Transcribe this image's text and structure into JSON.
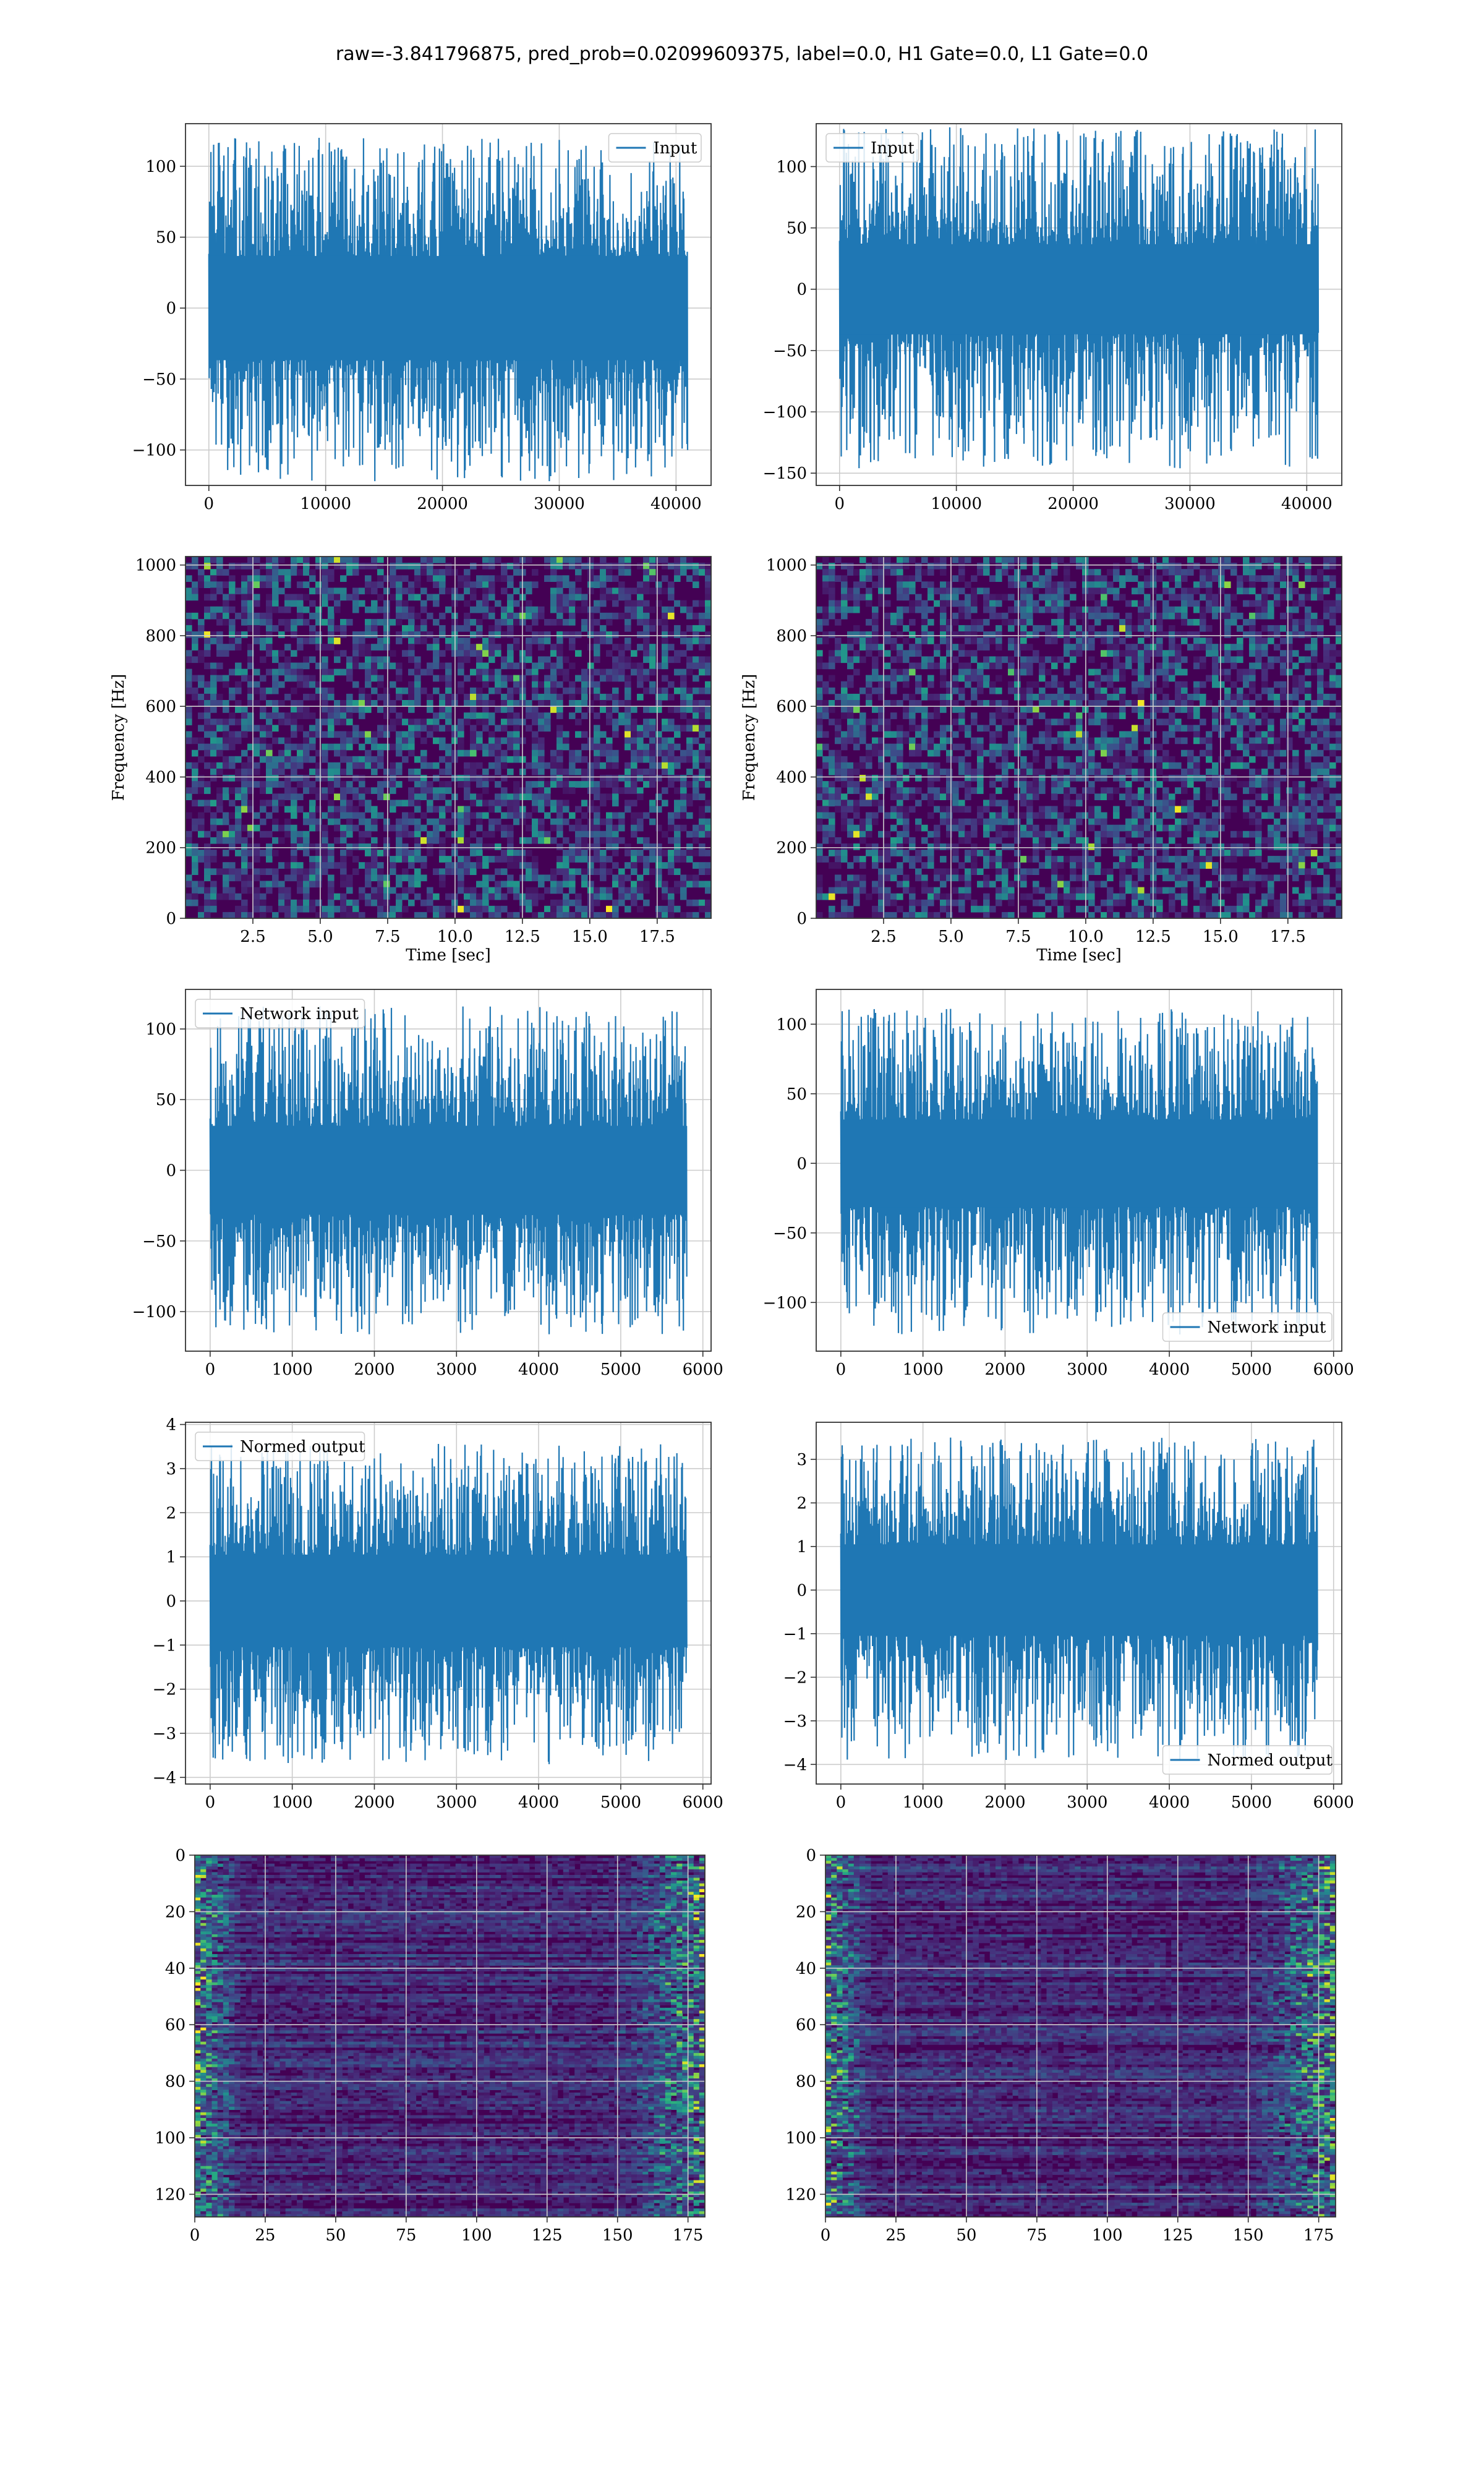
{
  "figure_title": "raw=-3.841796875, pred_prob=0.02099609375, label=0.0, H1 Gate=0.0, L1 Gate=0.0",
  "colors": {
    "line": "#1f77b4",
    "grid": "#cccccc",
    "axes_edge": "#333333",
    "viridis_low": "#440154",
    "viridis_mid": "#3b528b",
    "viridis_teal": "#21918c",
    "viridis_green": "#5ec962",
    "viridis_high": "#fde725"
  },
  "chart_data": [
    {
      "id": "input-h1",
      "type": "line",
      "grid": true,
      "legend": {
        "label": "Input",
        "placement": "upper right"
      },
      "xlim": [
        -2000,
        43000
      ],
      "ylim": [
        -125,
        130
      ],
      "xticks": [
        0,
        10000,
        20000,
        30000,
        40000
      ],
      "yticks": [
        -100,
        -50,
        0,
        50,
        100
      ],
      "signal": {
        "x_range": [
          0,
          40960
        ],
        "core_amplitude": 35,
        "peak_min": -122,
        "peak_max": 120
      }
    },
    {
      "id": "input-l1",
      "type": "line",
      "grid": true,
      "legend": {
        "label": "Input",
        "placement": "upper left"
      },
      "xlim": [
        -2000,
        43000
      ],
      "ylim": [
        -160,
        135
      ],
      "xticks": [
        0,
        10000,
        20000,
        30000,
        40000
      ],
      "yticks": [
        -150,
        -100,
        -50,
        0,
        50,
        100
      ],
      "signal": {
        "x_range": [
          0,
          40960
        ],
        "core_amplitude": 35,
        "peak_min": -146,
        "peak_max": 132
      }
    },
    {
      "id": "spectrogram-h1",
      "type": "heatmap",
      "grid": true,
      "colormap": "viridis",
      "xlabel": "Time [sec]",
      "ylabel": "Frequency [Hz]",
      "xlim": [
        0,
        19.5
      ],
      "ylim": [
        0,
        1024
      ],
      "xticks": [
        2.5,
        5.0,
        7.5,
        10.0,
        12.5,
        15.0,
        17.5
      ],
      "xtick_labels": [
        "2.5",
        "5.0",
        "7.5",
        "10.0",
        "12.5",
        "15.0",
        "17.5"
      ],
      "yticks": [
        0,
        200,
        400,
        600,
        800,
        1000
      ]
    },
    {
      "id": "spectrogram-l1",
      "type": "heatmap",
      "grid": true,
      "colormap": "viridis",
      "xlabel": "Time [sec]",
      "ylabel": "Frequency [Hz]",
      "xlim": [
        0,
        19.5
      ],
      "ylim": [
        0,
        1024
      ],
      "xticks": [
        2.5,
        5.0,
        7.5,
        10.0,
        12.5,
        15.0,
        17.5
      ],
      "xtick_labels": [
        "2.5",
        "5.0",
        "7.5",
        "10.0",
        "12.5",
        "15.0",
        "17.5"
      ],
      "yticks": [
        0,
        200,
        400,
        600,
        800,
        1000
      ]
    },
    {
      "id": "network-input-h1",
      "type": "line",
      "grid": true,
      "legend": {
        "label": "Network input",
        "placement": "upper left"
      },
      "xlim": [
        -300,
        6100
      ],
      "ylim": [
        -128,
        128
      ],
      "xticks": [
        0,
        1000,
        2000,
        3000,
        4000,
        5000,
        6000
      ],
      "yticks": [
        -100,
        -50,
        0,
        50,
        100
      ],
      "signal": {
        "x_range": [
          0,
          5800
        ],
        "core_amplitude": 30,
        "peak_min": -116,
        "peak_max": 116
      }
    },
    {
      "id": "network-input-l1",
      "type": "line",
      "grid": true,
      "legend": {
        "label": "Network input",
        "placement": "lower right"
      },
      "xlim": [
        -300,
        6100
      ],
      "ylim": [
        -135,
        125
      ],
      "xticks": [
        0,
        1000,
        2000,
        3000,
        4000,
        5000,
        6000
      ],
      "yticks": [
        -100,
        -50,
        0,
        50,
        100
      ],
      "signal": {
        "x_range": [
          0,
          5800
        ],
        "core_amplitude": 30,
        "peak_min": -123,
        "peak_max": 111
      }
    },
    {
      "id": "normed-output-h1",
      "type": "line",
      "grid": true,
      "legend": {
        "label": "Normed output",
        "placement": "upper left"
      },
      "xlim": [
        -300,
        6100
      ],
      "ylim": [
        -4.15,
        4.05
      ],
      "xticks": [
        0,
        1000,
        2000,
        3000,
        4000,
        5000,
        6000
      ],
      "yticks": [
        -4,
        -3,
        -2,
        -1,
        0,
        1,
        2,
        3,
        4
      ],
      "signal": {
        "x_range": [
          0,
          5800
        ],
        "core_amplitude": 1.0,
        "peak_min": -3.7,
        "peak_max": 3.6
      }
    },
    {
      "id": "normed-output-l1",
      "type": "line",
      "grid": true,
      "legend": {
        "label": "Normed output",
        "placement": "lower right"
      },
      "xlim": [
        -300,
        6100
      ],
      "ylim": [
        -4.45,
        3.85
      ],
      "xticks": [
        0,
        1000,
        2000,
        3000,
        4000,
        5000,
        6000
      ],
      "yticks": [
        -4,
        -3,
        -2,
        -1,
        0,
        1,
        2,
        3
      ],
      "signal": {
        "x_range": [
          0,
          5800
        ],
        "core_amplitude": 1.0,
        "peak_min": -3.9,
        "peak_max": 3.5
      }
    },
    {
      "id": "feature-map-h1",
      "type": "heatmap",
      "grid": true,
      "colormap": "viridis",
      "y_inverted": true,
      "xlim": [
        0,
        181
      ],
      "ylim": [
        128,
        0
      ],
      "xticks": [
        0,
        25,
        50,
        75,
        100,
        125,
        150,
        175
      ],
      "yticks": [
        0,
        20,
        40,
        60,
        80,
        100,
        120
      ]
    },
    {
      "id": "feature-map-l1",
      "type": "heatmap",
      "grid": true,
      "colormap": "viridis",
      "y_inverted": true,
      "xlim": [
        0,
        181
      ],
      "ylim": [
        128,
        0
      ],
      "xticks": [
        0,
        25,
        50,
        75,
        100,
        125,
        150,
        175
      ],
      "yticks": [
        0,
        20,
        40,
        60,
        80,
        100,
        120
      ]
    }
  ]
}
